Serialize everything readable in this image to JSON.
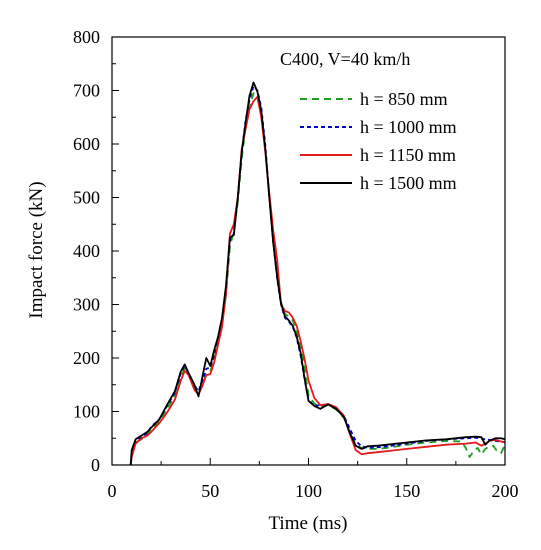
{
  "chart_data": {
    "type": "line",
    "annotation": "C400, V=40 km/h",
    "xlabel": "Time (ms)",
    "ylabel": "Impact force (kN)",
    "xlim": [
      0,
      200
    ],
    "ylim": [
      0,
      800
    ],
    "xticks": [
      0,
      50,
      100,
      150,
      200
    ],
    "yticks": [
      0,
      100,
      200,
      300,
      400,
      500,
      600,
      700,
      800
    ],
    "grid": false,
    "legend_position": "top-right",
    "series": [
      {
        "name": "h = 850 mm",
        "color": "#1e9e1e",
        "dash": "7,5",
        "x": [
          9.5,
          10,
          12,
          15,
          18,
          20,
          24,
          28,
          32,
          35,
          37,
          39,
          42,
          44,
          46,
          48,
          50,
          52,
          54,
          56,
          58,
          60,
          62,
          64,
          66,
          68,
          70,
          72,
          74,
          76,
          78,
          80,
          82,
          84,
          86,
          88,
          90,
          92,
          94,
          96,
          98,
          100,
          103,
          106,
          110,
          114,
          118,
          121,
          124,
          127,
          130,
          135,
          140,
          150,
          160,
          170,
          178,
          180,
          182,
          184,
          186,
          188,
          190,
          192,
          194,
          196,
          198,
          200
        ],
        "y": [
          0,
          18,
          42,
          48,
          58,
          68,
          80,
          105,
          128,
          165,
          180,
          170,
          145,
          135,
          150,
          172,
          175,
          198,
          228,
          262,
          318,
          408,
          438,
          492,
          572,
          632,
          668,
          695,
          690,
          655,
          588,
          502,
          418,
          352,
          305,
          282,
          278,
          270,
          250,
          225,
          180,
          130,
          115,
          108,
          112,
          104,
          88,
          62,
          38,
          32,
          30,
          30,
          32,
          38,
          42,
          45,
          44,
          32,
          15,
          26,
          32,
          20,
          30,
          35,
          36,
          26,
          22,
          38
        ]
      },
      {
        "name": "h = 1000 mm",
        "color": "#0000cc",
        "dash": "4,3",
        "x": [
          9.5,
          10,
          12,
          15,
          18,
          20,
          24,
          28,
          32,
          35,
          37,
          39,
          42,
          44,
          46,
          48,
          50,
          52,
          54,
          56,
          58,
          60,
          62,
          64,
          66,
          68,
          70,
          72,
          74,
          76,
          78,
          80,
          82,
          84,
          86,
          88,
          90,
          92,
          94,
          96,
          98,
          100,
          103,
          106,
          110,
          114,
          118,
          121,
          124,
          127,
          130,
          135,
          140,
          150,
          160,
          170,
          180,
          185,
          190,
          195,
          200
        ],
        "y": [
          0,
          25,
          45,
          52,
          60,
          72,
          85,
          110,
          135,
          172,
          185,
          172,
          148,
          138,
          158,
          180,
          182,
          205,
          235,
          270,
          328,
          420,
          432,
          498,
          582,
          645,
          682,
          708,
          700,
          668,
          598,
          505,
          420,
          350,
          300,
          275,
          268,
          258,
          238,
          205,
          160,
          122,
          110,
          112,
          113,
          108,
          92,
          68,
          45,
          35,
          32,
          33,
          35,
          40,
          45,
          48,
          50,
          51,
          48,
          45,
          43
        ]
      },
      {
        "name": "h = 1150 mm",
        "color": "#e41a1a",
        "dash": "",
        "x": [
          9.5,
          10,
          12,
          15,
          18,
          20,
          24,
          28,
          32,
          35,
          37,
          39,
          42,
          44,
          46,
          48,
          50,
          52,
          54,
          56,
          58,
          60,
          62,
          64,
          66,
          68,
          70,
          72,
          74,
          76,
          78,
          80,
          82,
          84,
          86,
          88,
          90,
          92,
          94,
          96,
          98,
          100,
          103,
          106,
          110,
          114,
          118,
          121,
          124,
          127,
          130,
          135,
          140,
          150,
          160,
          170,
          180,
          185,
          188,
          190,
          192,
          195,
          198,
          200
        ],
        "y": [
          0,
          15,
          40,
          50,
          55,
          62,
          78,
          98,
          122,
          158,
          176,
          168,
          140,
          132,
          148,
          168,
          170,
          192,
          225,
          258,
          320,
          432,
          450,
          500,
          590,
          628,
          665,
          680,
          688,
          650,
          585,
          510,
          440,
          385,
          300,
          288,
          285,
          275,
          260,
          232,
          198,
          158,
          125,
          112,
          114,
          108,
          92,
          58,
          28,
          20,
          22,
          24,
          26,
          30,
          34,
          38,
          40,
          42,
          36,
          40,
          45,
          47,
          44,
          42
        ]
      },
      {
        "name": "h = 1500 mm",
        "color": "#000000",
        "dash": "",
        "x": [
          9.5,
          10,
          12,
          15,
          18,
          20,
          24,
          28,
          32,
          35,
          37,
          39,
          42,
          44,
          46,
          48,
          50,
          52,
          54,
          56,
          58,
          60,
          62,
          64,
          66,
          68,
          70,
          72,
          74,
          76,
          78,
          80,
          82,
          84,
          86,
          88,
          90,
          92,
          94,
          96,
          98,
          100,
          103,
          106,
          110,
          114,
          118,
          121,
          124,
          127,
          130,
          135,
          140,
          150,
          160,
          170,
          180,
          185,
          188,
          190,
          192,
          195,
          198,
          200
        ],
        "y": [
          0,
          28,
          48,
          55,
          62,
          70,
          85,
          112,
          138,
          175,
          188,
          172,
          150,
          128,
          165,
          200,
          185,
          215,
          240,
          275,
          335,
          425,
          430,
          500,
          585,
          640,
          690,
          715,
          698,
          662,
          592,
          502,
          418,
          352,
          302,
          278,
          270,
          260,
          240,
          210,
          162,
          120,
          110,
          105,
          113,
          105,
          90,
          60,
          36,
          30,
          35,
          36,
          38,
          42,
          46,
          48,
          52,
          53,
          52,
          38,
          45,
          50,
          50,
          48
        ]
      }
    ]
  }
}
